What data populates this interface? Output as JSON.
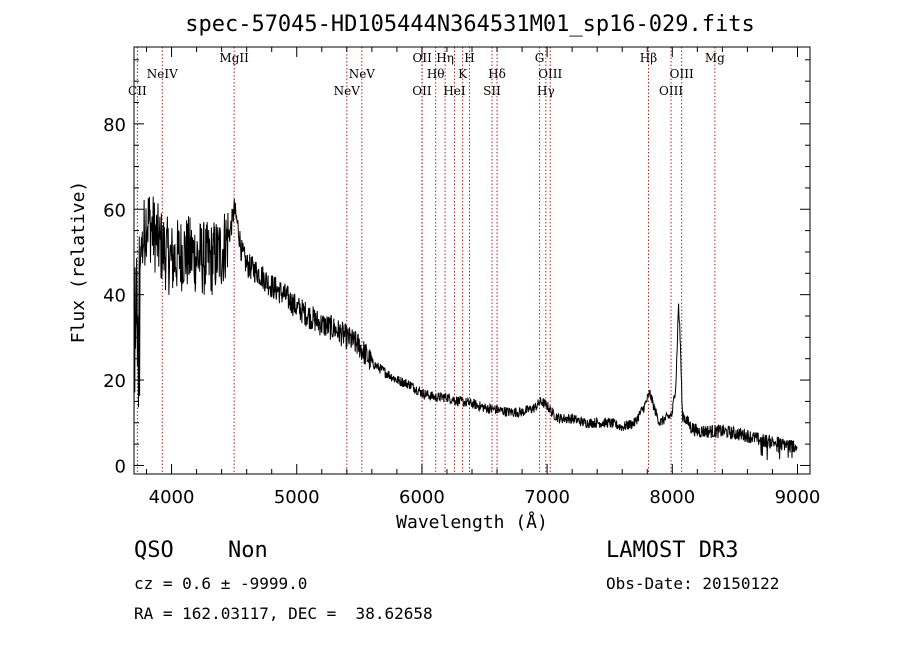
{
  "chart_data": {
    "type": "line",
    "title": "spec-57045-HD105444N364531M01_sp16-029.fits",
    "xlabel": "Wavelength (Å)",
    "ylabel": "Flux (relative)",
    "xlim": [
      3700,
      9100
    ],
    "ylim": [
      -2,
      98
    ],
    "xticks": [
      4000,
      5000,
      6000,
      7000,
      8000,
      9000
    ],
    "yticks": [
      0,
      20,
      40,
      60,
      80
    ],
    "spectrum_knots": [
      [
        3700,
        5
      ],
      [
        3720,
        35
      ],
      [
        3760,
        50
      ],
      [
        3800,
        58
      ],
      [
        3850,
        55
      ],
      [
        3900,
        52
      ],
      [
        3950,
        50
      ],
      [
        4000,
        48
      ],
      [
        4100,
        50
      ],
      [
        4200,
        49
      ],
      [
        4300,
        48
      ],
      [
        4400,
        50
      ],
      [
        4470,
        55
      ],
      [
        4500,
        60
      ],
      [
        4530,
        56
      ],
      [
        4560,
        50
      ],
      [
        4600,
        47
      ],
      [
        4700,
        45
      ],
      [
        4800,
        42
      ],
      [
        4900,
        40
      ],
      [
        5000,
        37
      ],
      [
        5100,
        35
      ],
      [
        5200,
        33
      ],
      [
        5300,
        32
      ],
      [
        5400,
        30
      ],
      [
        5500,
        28
      ],
      [
        5600,
        24
      ],
      [
        5700,
        22
      ],
      [
        5800,
        20
      ],
      [
        5900,
        19
      ],
      [
        6000,
        17
      ],
      [
        6100,
        16
      ],
      [
        6200,
        16
      ],
      [
        6300,
        15
      ],
      [
        6400,
        14.5
      ],
      [
        6500,
        13.5
      ],
      [
        6600,
        13
      ],
      [
        6700,
        12.5
      ],
      [
        6800,
        12.5
      ],
      [
        6900,
        13.5
      ],
      [
        6950,
        15
      ],
      [
        7000,
        14
      ],
      [
        7050,
        12
      ],
      [
        7100,
        11
      ],
      [
        7200,
        11
      ],
      [
        7300,
        10
      ],
      [
        7400,
        10
      ],
      [
        7500,
        10
      ],
      [
        7600,
        9
      ],
      [
        7700,
        10
      ],
      [
        7780,
        14
      ],
      [
        7820,
        17
      ],
      [
        7860,
        13
      ],
      [
        7900,
        10
      ],
      [
        7950,
        11
      ],
      [
        8000,
        12
      ],
      [
        8030,
        20
      ],
      [
        8050,
        38
      ],
      [
        8065,
        28
      ],
      [
        8080,
        12
      ],
      [
        8150,
        9
      ],
      [
        8200,
        8
      ],
      [
        8300,
        8
      ],
      [
        8400,
        8
      ],
      [
        8500,
        7.5
      ],
      [
        8600,
        7
      ],
      [
        8700,
        6
      ],
      [
        8800,
        5.5
      ],
      [
        8900,
        5
      ],
      [
        9000,
        4.5
      ]
    ],
    "noise_regions": [
      {
        "from": 3700,
        "to": 4450,
        "amplitude": 9
      },
      {
        "from": 4450,
        "to": 5600,
        "amplitude": 3
      },
      {
        "from": 5600,
        "to": 8000,
        "amplitude": 1.2
      },
      {
        "from": 8000,
        "to": 9000,
        "amplitude": 1.6
      }
    ],
    "spectral_lines": [
      {
        "label": "CII",
        "wavelength": 3727,
        "tier": 3
      },
      {
        "label": "NeIV",
        "wavelength": 3926,
        "tier": 2
      },
      {
        "label": "MgII",
        "wavelength": 4500,
        "tier": 1
      },
      {
        "label": "NeV",
        "wavelength": 5400,
        "tier": 3
      },
      {
        "label": "NeV",
        "wavelength": 5520,
        "tier": 2
      },
      {
        "label": "OII",
        "wavelength": 6000,
        "tier": 3
      },
      {
        "label": "OII",
        "wavelength": 6002,
        "tier": 1
      },
      {
        "label": "Hθ",
        "wavelength": 6110,
        "tier": 2
      },
      {
        "label": "Hη",
        "wavelength": 6185,
        "tier": 1
      },
      {
        "label": "HeI",
        "wavelength": 6260,
        "tier": 3
      },
      {
        "label": "K",
        "wavelength": 6325,
        "tier": 2
      },
      {
        "label": "H",
        "wavelength": 6380,
        "tier": 1
      },
      {
        "label": "SII",
        "wavelength": 6560,
        "tier": 3
      },
      {
        "label": "Hδ",
        "wavelength": 6600,
        "tier": 2
      },
      {
        "label": "G",
        "wavelength": 6940,
        "tier": 1
      },
      {
        "label": "Hγ",
        "wavelength": 6990,
        "tier": 3
      },
      {
        "label": "OIII",
        "wavelength": 7025,
        "tier": 2
      },
      {
        "label": "Hβ",
        "wavelength": 7810,
        "tier": 1
      },
      {
        "label": "OIII",
        "wavelength": 7990,
        "tier": 3
      },
      {
        "label": "OIII",
        "wavelength": 8075,
        "tier": 2
      },
      {
        "label": "Mg",
        "wavelength": 8340,
        "tier": 1
      }
    ]
  },
  "info": {
    "class": "QSO",
    "subclass": "Non",
    "survey": "LAMOST DR3",
    "cz": "cz = 0.6 ± -9999.0",
    "obs_date": "Obs-Date: 20150122",
    "coords": "RA = 162.03117, DEC =  38.62658"
  },
  "colors": {
    "spectrum": "#000000",
    "line_marker": "#b22222",
    "axes": "#000000"
  }
}
